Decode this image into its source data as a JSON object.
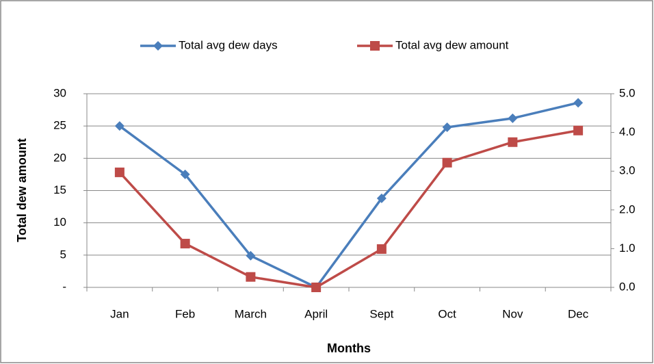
{
  "chart_data": {
    "type": "line",
    "y_label": "Total dew amount",
    "x_label": "Months",
    "categories": [
      "Jan",
      "Feb",
      "March",
      "April",
      "Sept",
      "Oct",
      "Nov",
      "Dec"
    ],
    "series": [
      {
        "name": "Total avg dew days",
        "color": "#4a7ebb",
        "marker": "diamond",
        "values": [
          25.0,
          17.5,
          4.9,
          0,
          13.8,
          24.8,
          26.2,
          28.6
        ]
      },
      {
        "name": "Total avg dew amount",
        "color": "#be4b48",
        "marker": "square",
        "axis": "y2",
        "values": [
          2.97,
          1.13,
          0.27,
          0,
          0.99,
          3.22,
          3.75,
          4.05
        ]
      }
    ],
    "ylim": [
      0,
      30
    ],
    "yticks": [
      {
        "value": 0,
        "label": "-"
      },
      5,
      10,
      15,
      20,
      25,
      30
    ],
    "y2lim": [
      0,
      5
    ],
    "y2ticks": [
      {
        "value": 0,
        "label": "0.0"
      },
      {
        "value": 1,
        "label": "1.0"
      },
      {
        "value": 2,
        "label": "2.0"
      },
      {
        "value": 3,
        "label": "3.0"
      },
      {
        "value": 4,
        "label": "4.0"
      },
      {
        "value": 5,
        "label": "5.0"
      }
    ],
    "grid": true,
    "legend": "top"
  }
}
